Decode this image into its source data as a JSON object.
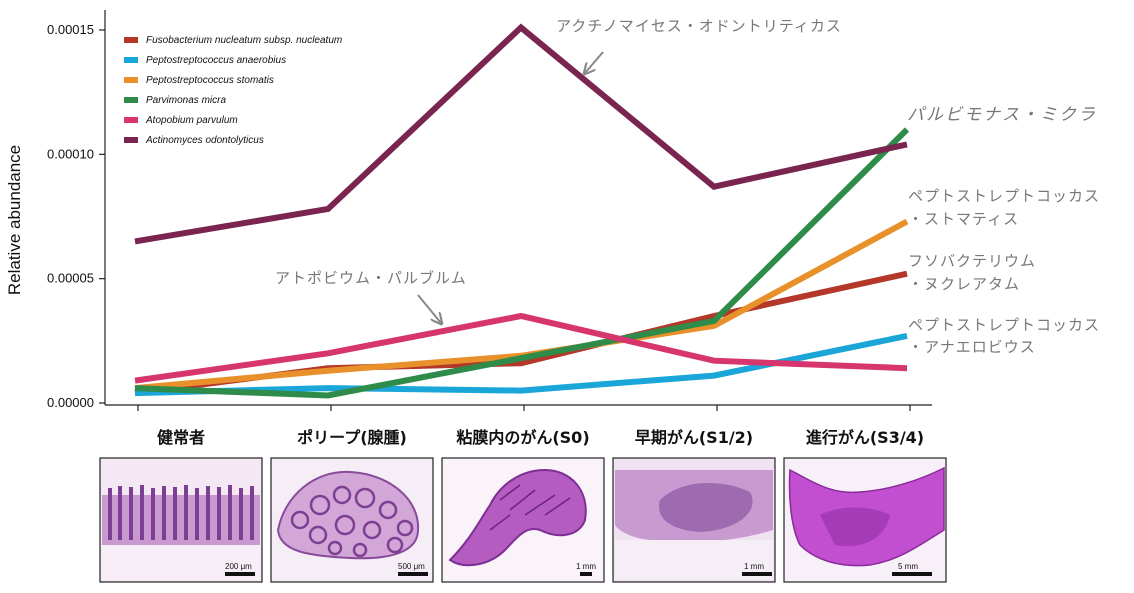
{
  "chart_data": {
    "type": "line",
    "ylabel": "Relative abundance",
    "ylim": [
      0,
      0.00016
    ],
    "yticks": [
      "0.00000",
      "0.00005",
      "0.00010",
      "0.00015"
    ],
    "ytick_values": [
      0,
      5e-05,
      0.0001,
      0.00015
    ],
    "categories": [
      "健常者",
      "ポリープ(腺腫)",
      "粘膜内のがん(S0)",
      "早期がん(S1/2)",
      "進行がん(S3/4)"
    ],
    "legend_position": "top-left",
    "series": [
      {
        "name": "Fusobacterium nucleatum subsp. nucleatum",
        "color": "#b5372a",
        "values": [
          4e-06,
          1.4e-05,
          1.6e-05,
          3.5e-05,
          5.2e-05
        ]
      },
      {
        "name": "Peptostreptococcus anaerobius",
        "color": "#1aa6d8",
        "values": [
          4e-06,
          6e-06,
          5e-06,
          1.1e-05,
          2.7e-05
        ]
      },
      {
        "name": "Peptostreptococcus stomatis",
        "color": "#e8902a",
        "values": [
          6e-06,
          1.3e-05,
          1.9e-05,
          3.1e-05,
          7.3e-05
        ]
      },
      {
        "name": "Parvimonas micra",
        "color": "#2e8b4a",
        "values": [
          6e-06,
          3e-06,
          1.8e-05,
          3.3e-05,
          0.00011
        ]
      },
      {
        "name": "Atopobium parvulum",
        "color": "#d6356e",
        "values": [
          9e-06,
          2e-05,
          3.5e-05,
          1.7e-05,
          1.4e-05
        ]
      },
      {
        "name": "Actinomyces odontolyticus",
        "color": "#7a2450",
        "values": [
          6.5e-05,
          7.8e-05,
          0.000151,
          8.7e-05,
          0.000104
        ]
      }
    ],
    "annotations": [
      {
        "text": "アクチノマイセス・オドントリティカス",
        "series": "Actinomyces odontolyticus"
      },
      {
        "text": "アトポビウム・パルブルム",
        "series": "Atopobium parvulum"
      },
      {
        "text": "パルビモナス・ミクラ",
        "series": "Parvimonas micra"
      },
      {
        "lines": [
          "ペプトストレプトコッカス",
          "・ストマティス"
        ],
        "series": "Peptostreptococcus stomatis"
      },
      {
        "lines": [
          "フソバクテリウム",
          "・ヌクレアタム"
        ],
        "series": "Fusobacterium nucleatum subsp. nucleatum"
      },
      {
        "lines": [
          "ペプトストレプトコッカス",
          "・アナエロビウス"
        ],
        "series": "Peptostreptococcus anaerobius"
      }
    ]
  },
  "histology": {
    "scale_bars": [
      "200 μm",
      "500 μm",
      "1 mm",
      "1 mm",
      "5 mm"
    ]
  }
}
